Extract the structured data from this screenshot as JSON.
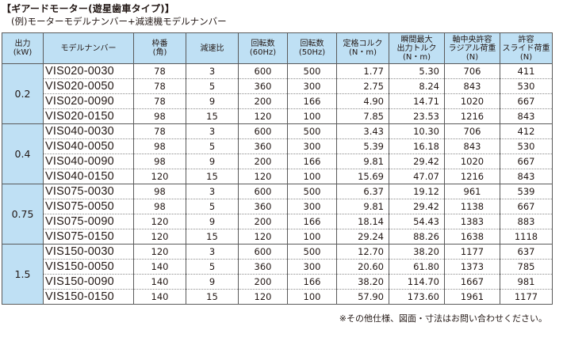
{
  "title": "【ギアードモーター(遊星歯車タイプ)】",
  "subtitle": "(例)モーターモデルナンバー+減速機モデルナンバー",
  "table": {
    "headers": {
      "output": [
        "出力",
        "(kW)"
      ],
      "model": [
        "モデルナンバー"
      ],
      "frame": [
        "枠番",
        "(角)"
      ],
      "ratio": [
        "減速比"
      ],
      "rpm60": [
        "回転数",
        "(60Hz)"
      ],
      "rpm50": [
        "回転数",
        "(50Hz)"
      ],
      "rated_torque": [
        "定格コルク",
        "(N・m)"
      ],
      "peak_torque": [
        "瞬間最大",
        "出力トルク",
        "(N・m)"
      ],
      "axial_load": [
        "軸中央許容",
        "ラジアル荷重",
        "(N)"
      ],
      "thrust_load": [
        "許容",
        "スライド荷重",
        "(N)"
      ]
    },
    "groups": [
      {
        "output": "0.2",
        "rows": [
          [
            "VIS020-0030",
            "78",
            "3",
            "600",
            "500",
            "1.77",
            "5.30",
            "706",
            "411"
          ],
          [
            "VIS020-0050",
            "78",
            "5",
            "360",
            "300",
            "2.75",
            "8.24",
            "843",
            "530"
          ],
          [
            "VIS020-0090",
            "78",
            "9",
            "200",
            "166",
            "4.90",
            "14.71",
            "1020",
            "667"
          ],
          [
            "VIS020-0150",
            "98",
            "15",
            "120",
            "100",
            "7.85",
            "23.53",
            "1216",
            "843"
          ]
        ]
      },
      {
        "output": "0.4",
        "rows": [
          [
            "VIS040-0030",
            "78",
            "3",
            "600",
            "500",
            "3.43",
            "10.30",
            "706",
            "412"
          ],
          [
            "VIS040-0050",
            "98",
            "5",
            "360",
            "300",
            "5.39",
            "16.18",
            "843",
            "530"
          ],
          [
            "VIS040-0090",
            "98",
            "9",
            "200",
            "166",
            "9.81",
            "29.42",
            "1020",
            "667"
          ],
          [
            "VIS040-0150",
            "120",
            "15",
            "120",
            "100",
            "15.69",
            "47.07",
            "1216",
            "843"
          ]
        ]
      },
      {
        "output": "0.75",
        "rows": [
          [
            "VIS075-0030",
            "98",
            "3",
            "600",
            "500",
            "6.37",
            "19.12",
            "961",
            "539"
          ],
          [
            "VIS075-0050",
            "98",
            "5",
            "360",
            "300",
            "9.81",
            "29.42",
            "1138",
            "667"
          ],
          [
            "VIS075-0090",
            "120",
            "9",
            "200",
            "166",
            "18.14",
            "54.43",
            "1383",
            "883"
          ],
          [
            "VIS075-0150",
            "120",
            "15",
            "120",
            "100",
            "29.24",
            "88.26",
            "1638",
            "1118"
          ]
        ]
      },
      {
        "output": "1.5",
        "rows": [
          [
            "VIS150-0030",
            "120",
            "3",
            "600",
            "500",
            "12.70",
            "38.20",
            "1177",
            "637"
          ],
          [
            "VIS150-0050",
            "140",
            "5",
            "360",
            "300",
            "20.60",
            "61.80",
            "1373",
            "785"
          ],
          [
            "VIS150-0090",
            "140",
            "9",
            "200",
            "166",
            "38.20",
            "114.70",
            "1667",
            "981"
          ],
          [
            "VIS150-0150",
            "140",
            "15",
            "120",
            "100",
            "57.90",
            "173.60",
            "1961",
            "1177"
          ]
        ]
      }
    ]
  },
  "note": "※その他仕様、図面・寸法はお問い合わせください。",
  "colors": {
    "header_bg": "#bfe0f4",
    "border": "#5a5a5a",
    "text": "#231815"
  }
}
